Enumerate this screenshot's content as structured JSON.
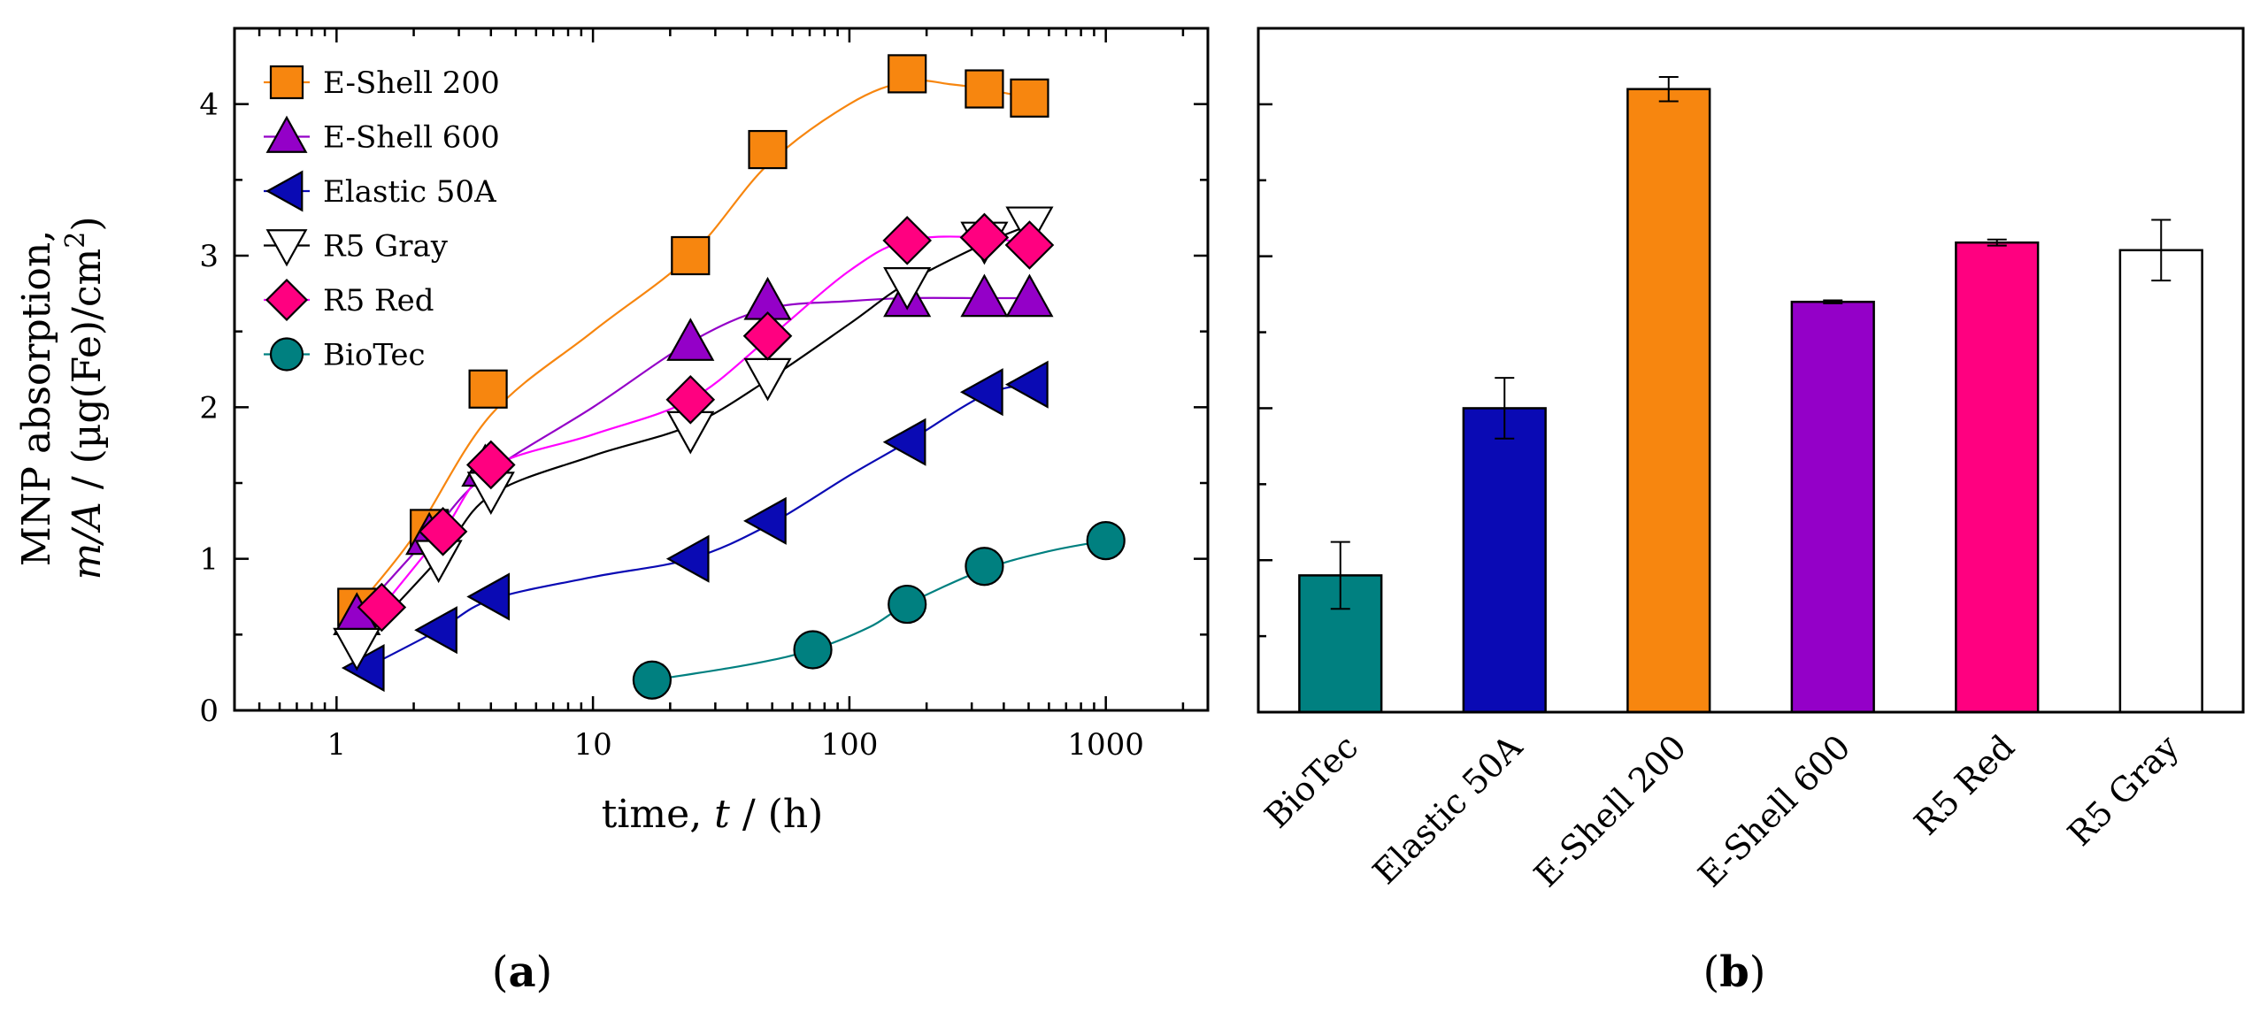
{
  "chart_data": [
    {
      "type": "scatter",
      "panel_label": "a",
      "title": "",
      "xlabel_prefix": "time, ",
      "xlabel_var": "t",
      "xlabel_suffix": " / (h)",
      "ylabel_line1": "MNP absorption,",
      "ylabel_line2_var": "m/A",
      "ylabel_line2_suffix": " / (µg(Fe)/cm",
      "ylabel_sup": "2",
      "ylabel_close": ")",
      "xscale": "log",
      "xlim": [
        0.4,
        2500
      ],
      "ylim": [
        0,
        4.5
      ],
      "x_ticks": [
        1,
        10,
        100,
        1000
      ],
      "x_tick_labels": [
        "1",
        "10",
        "100",
        "1000"
      ],
      "y_ticks": [
        0,
        1,
        2,
        3,
        4
      ],
      "y_tick_labels": [
        "0",
        "1",
        "2",
        "3",
        "4"
      ],
      "legend_position": "top-left",
      "series": [
        {
          "name": "E-Shell 200",
          "marker": "square",
          "color": "#F7860F",
          "line_color": "#F7860F",
          "points": [
            [
              1.2,
              0.68
            ],
            [
              2.3,
              1.2
            ],
            [
              3.9,
              2.12
            ],
            [
              24,
              3.0
            ],
            [
              48,
              3.7
            ],
            [
              168,
              4.2
            ],
            [
              336,
              4.1
            ],
            [
              504,
              4.04
            ]
          ],
          "curve": [
            [
              1.2,
              0.68
            ],
            [
              2,
              1.15
            ],
            [
              4,
              1.95
            ],
            [
              10,
              2.5
            ],
            [
              24,
              3.0
            ],
            [
              48,
              3.6
            ],
            [
              100,
              4.0
            ],
            [
              168,
              4.15
            ],
            [
              250,
              4.13
            ],
            [
              336,
              4.1
            ],
            [
              504,
              4.04
            ]
          ]
        },
        {
          "name": "E-Shell 600",
          "marker": "triangle-up",
          "color": "#9400C8",
          "line_color": "#9400C8",
          "points": [
            [
              1.2,
              0.62
            ],
            [
              2.3,
              1.15
            ],
            [
              3.8,
              1.6
            ],
            [
              24,
              2.43
            ],
            [
              48,
              2.7
            ],
            [
              168,
              2.72
            ],
            [
              336,
              2.72
            ],
            [
              504,
              2.72
            ]
          ],
          "curve": [
            [
              1.2,
              0.62
            ],
            [
              2.3,
              1.15
            ],
            [
              3.8,
              1.55
            ],
            [
              10,
              2.0
            ],
            [
              24,
              2.43
            ],
            [
              48,
              2.65
            ],
            [
              100,
              2.7
            ],
            [
              168,
              2.72
            ],
            [
              336,
              2.72
            ],
            [
              504,
              2.72
            ]
          ]
        },
        {
          "name": "Elastic 50A",
          "marker": "triangle-left",
          "color": "#0A0AB4",
          "line_color": "#0A0AB4",
          "points": [
            [
              1.3,
              0.28
            ],
            [
              2.5,
              0.53
            ],
            [
              4,
              0.75
            ],
            [
              24,
              1.0
            ],
            [
              48,
              1.25
            ],
            [
              168,
              1.77
            ],
            [
              336,
              2.1
            ],
            [
              504,
              2.15
            ]
          ],
          "curve": [
            [
              1.3,
              0.28
            ],
            [
              2.5,
              0.53
            ],
            [
              4,
              0.73
            ],
            [
              10,
              0.88
            ],
            [
              24,
              1.0
            ],
            [
              48,
              1.22
            ],
            [
              100,
              1.55
            ],
            [
              168,
              1.77
            ],
            [
              336,
              2.08
            ],
            [
              504,
              2.15
            ]
          ]
        },
        {
          "name": "R5 Gray",
          "marker": "triangle-down",
          "color": "#FFFFFF",
          "line_color": "#000000",
          "points": [
            [
              1.2,
              0.42
            ],
            [
              2.5,
              1.0
            ],
            [
              4,
              1.45
            ],
            [
              24,
              1.85
            ],
            [
              48,
              2.2
            ],
            [
              168,
              2.8
            ],
            [
              336,
              3.1
            ],
            [
              504,
              3.2
            ]
          ],
          "curve": [
            [
              1.2,
              0.42
            ],
            [
              2.5,
              1.0
            ],
            [
              4,
              1.42
            ],
            [
              10,
              1.68
            ],
            [
              24,
              1.88
            ],
            [
              48,
              2.18
            ],
            [
              100,
              2.55
            ],
            [
              168,
              2.82
            ],
            [
              336,
              3.08
            ],
            [
              504,
              3.2
            ]
          ]
        },
        {
          "name": "R5 Red",
          "marker": "diamond",
          "color": "#FF0080",
          "line_color": "#FF00FF",
          "points": [
            [
              1.5,
              0.68
            ],
            [
              2.6,
              1.18
            ],
            [
              4,
              1.62
            ],
            [
              24,
              2.05
            ],
            [
              48,
              2.47
            ],
            [
              168,
              3.1
            ],
            [
              336,
              3.12
            ],
            [
              504,
              3.07
            ]
          ],
          "curve": [
            [
              1.5,
              0.68
            ],
            [
              2.6,
              1.18
            ],
            [
              4,
              1.6
            ],
            [
              10,
              1.82
            ],
            [
              24,
              2.05
            ],
            [
              48,
              2.45
            ],
            [
              100,
              2.9
            ],
            [
              168,
              3.1
            ],
            [
              336,
              3.12
            ],
            [
              504,
              3.07
            ]
          ]
        },
        {
          "name": "BioTec",
          "marker": "circle",
          "color": "#008080",
          "line_color": "#008080",
          "points": [
            [
              17,
              0.2
            ],
            [
              72,
              0.4
            ],
            [
              168,
              0.7
            ],
            [
              336,
              0.95
            ],
            [
              1000,
              1.12
            ]
          ],
          "curve": [
            [
              17,
              0.2
            ],
            [
              40,
              0.3
            ],
            [
              72,
              0.4
            ],
            [
              120,
              0.55
            ],
            [
              168,
              0.7
            ],
            [
              336,
              0.93
            ],
            [
              600,
              1.05
            ],
            [
              1000,
              1.12
            ]
          ]
        }
      ]
    },
    {
      "type": "bar",
      "panel_label": "b",
      "title": "",
      "xlabel": "",
      "ylabel": "",
      "ylim": [
        0,
        4.5
      ],
      "y_ticks": [
        1,
        2,
        3,
        4
      ],
      "categories": [
        "BioTec",
        "Elastic 50A",
        "E-Shell 200",
        "E-Shell 600",
        "R5 Red",
        "R5 Gray"
      ],
      "values": [
        0.9,
        2.0,
        4.1,
        2.7,
        3.09,
        3.04
      ],
      "errors": [
        0.22,
        0.2,
        0.08,
        0.01,
        0.02,
        0.2
      ],
      "colors": [
        "#008080",
        "#0A0AB4",
        "#F7860F",
        "#9400C8",
        "#FF0080",
        "#FFFFFF"
      ]
    }
  ]
}
